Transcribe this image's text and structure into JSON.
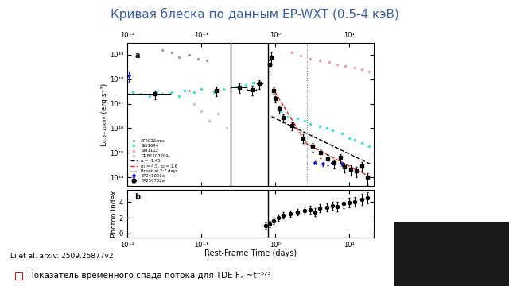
{
  "slide": {
    "title": "Кривая блеска по данным EP-WXT (0.5-4 кэВ)",
    "citation": "Li et al. arxiv: 2509.25877v2",
    "note": "Показатель временного спада потока для TDE Fₓ ~t⁻⁵ᐟ³"
  },
  "chart_data": [
    {
      "type": "scatter",
      "title": "a",
      "log": true,
      "legend": "lower left",
      "y_label": "L₀.₃₋₁₀ₖₑᵥ (erg s⁻¹)",
      "xlim": [
        0.01,
        22
      ],
      "xticks": [
        {
          "value": 0.01,
          "label": "10⁻²"
        },
        {
          "value": 0.1,
          "label": "10⁻¹"
        },
        {
          "value": 1,
          "label": "10⁰"
        },
        {
          "value": 10,
          "label": "10¹"
        }
      ],
      "ylim": [
        4.5e+43,
        3e+49
      ],
      "yticks": [
        {
          "value": 1e+44,
          "label": "10⁴⁴"
        },
        {
          "value": 1e+45,
          "label": "10⁴⁵"
        },
        {
          "value": 1e+46,
          "label": "10⁴⁶"
        },
        {
          "value": 1e+47,
          "label": "10⁴⁷"
        },
        {
          "value": 1e+48,
          "label": "10⁴⁸"
        },
        {
          "value": 1e+49,
          "label": "10⁴⁹"
        }
      ],
      "vlines": [
        0.25,
        0.8
      ],
      "series": [
        {
          "name": "AT2022cmc",
          "color": "#a0a0a0",
          "marker": "dot",
          "line_style": "none",
          "x": [
            0.03,
            0.04,
            0.05,
            0.07,
            0.09,
            0.12
          ],
          "values": [
            1.5e+49,
            1.2e+49,
            8e+48,
            1e+49,
            7e+48,
            6e+48
          ]
        },
        {
          "name": "SW1644",
          "color": "#40e0d0",
          "marker": "dot",
          "line_style": "none",
          "x": [
            0.012,
            0.015,
            0.02,
            0.025,
            0.03,
            0.04,
            0.05,
            0.06,
            0.08,
            0.1,
            0.15,
            0.2,
            0.3,
            0.4,
            0.5,
            1.2,
            1.5,
            2,
            2.5,
            3,
            4,
            5,
            6,
            8,
            10,
            12,
            15,
            19
          ],
          "values": [
            3e+47,
            2.5e+47,
            2e+47,
            3e+47,
            2.5e+47,
            3e+47,
            2e+47,
            3.5e+47,
            3e+47,
            4e+47,
            3e+47,
            4e+47,
            5e+47,
            6e+47,
            7e+47,
            5e+46,
            3e+46,
            2.5e+46,
            2e+46,
            1.5e+46,
            1.2e+46,
            1e+46,
            8e+45,
            6e+45,
            4e+45,
            3.5e+45,
            2.5e+45,
            1.8e+45
          ]
        },
        {
          "name": "SW1112",
          "color": "#e8a0b0",
          "marker": "dot",
          "line_style": "none",
          "x": [
            1.7,
            2.2,
            3,
            4,
            5.5,
            7,
            9,
            12,
            15,
            19
          ],
          "values": [
            1.2e+49,
            9e+48,
            7e+48,
            6e+48,
            5e+48,
            4e+48,
            3.5e+48,
            3e+48,
            2.5e+48,
            2e+48
          ]
        },
        {
          "name": "GRB110328A",
          "color": "#c8c8c8",
          "marker": "dot",
          "line_style": "none",
          "x": [
            0.08,
            0.1,
            0.13,
            0.17,
            0.22
          ],
          "values": [
            1e+47,
            5e+46,
            2e+46,
            4e+46,
            1e+46
          ]
        },
        {
          "name": "α = -1.45",
          "type": "line",
          "color": "#000000",
          "marker": "none",
          "line_style": "dashed",
          "x": [
            0.9,
            20
          ],
          "values": [
            3e+46,
            3.4e+44
          ]
        },
        {
          "name": "α₁ = 4.5, α₂ = 1.6",
          "type": "line",
          "color": "#d02020",
          "marker": "none",
          "line_style": "dashed",
          "x": [
            1.0,
            2.7,
            20
          ],
          "values": [
            3e+47,
            2.3e+45,
            1e+44
          ]
        },
        {
          "name": "Break at 2.7 days",
          "type": "vline",
          "color": "#808080",
          "line_style": "dotted",
          "x": [
            2.7
          ]
        },
        {
          "name": "EP241021a",
          "color": "#2020c0",
          "marker": "star",
          "line_style": "none",
          "x": [
            0.0105,
            3.5,
            4.5,
            6,
            8
          ],
          "values": [
            1.4e+48,
            4e+44,
            3.5e+44,
            4e+44,
            3.5e+44
          ],
          "yerr": [
            6e+47,
            5e+43,
            5e+43,
            5e+43,
            5e+43
          ]
        },
        {
          "name": "EP250702a",
          "color": "#000000",
          "marker": "square",
          "line_style": "none",
          "x": [
            0.024,
            0.16,
            0.33,
            0.49,
            0.62,
            0.85,
            0.88,
            0.95,
            1.0,
            1.13,
            1.3,
            1.7,
            2.4,
            3.2,
            4.1,
            5.2,
            6.3,
            7.6,
            8.6,
            10.5,
            12.5,
            14.9,
            18
          ],
          "values": [
            2.5e+47,
            3.5e+47,
            4.7e+47,
            3.7e+47,
            6.5e+47,
            4e+48,
            8e+48,
            3.5e+47,
            1.6e+47,
            6e+46,
            2.8e+46,
            1.3e+46,
            4e+45,
            1.8e+45,
            1e+45,
            5.6e+44,
            3.8e+44,
            6.4e+44,
            2.6e+44,
            2.2e+44,
            1.8e+44,
            3e+44,
            1e+44
          ],
          "yerr": [
            1e+47,
            1.5e+47,
            2e+47,
            1.5e+47,
            2.5e+47,
            2e+48,
            4e+48,
            1e+47,
            5e+46,
            2e+46,
            1e+46,
            5e+45,
            1.5e+45,
            7e+44,
            4e+44,
            2.5e+44,
            1.5e+44,
            2.5e+44,
            1e+44,
            1e+44,
            8e+43,
            1.2e+44,
            5e+43
          ],
          "xerr": [
            0.014,
            0.09,
            0.08,
            0.07,
            0.05,
            null,
            null,
            null,
            null,
            null,
            null,
            null,
            null,
            null,
            null,
            null,
            null,
            null,
            null,
            null,
            null,
            null,
            null
          ]
        }
      ]
    },
    {
      "type": "scatter",
      "title": "b",
      "log": "x",
      "x_label": "Rest-Frame Time (days)",
      "y_label": "Photon index",
      "xlim": [
        0.01,
        22
      ],
      "xticks": [
        {
          "value": 0.01,
          "label": "10⁻²"
        },
        {
          "value": 0.1,
          "label": "10⁻¹"
        },
        {
          "value": 1,
          "label": "10⁰"
        },
        {
          "value": 10,
          "label": "10¹"
        }
      ],
      "ylim": [
        -0.5,
        5.5
      ],
      "yticks": [
        0,
        2,
        4
      ],
      "vlines": [
        0.8
      ],
      "series": [
        {
          "color": "#000000",
          "marker": "circle",
          "line_style": "none",
          "x": [
            0.75,
            0.85,
            0.95,
            1.1,
            1.3,
            1.6,
            2,
            2.5,
            3,
            3.5,
            4,
            5,
            6,
            7,
            8.5,
            10,
            12,
            15,
            18
          ],
          "values": [
            1.0,
            1.2,
            1.6,
            2.0,
            2.3,
            2.5,
            2.7,
            2.9,
            3.0,
            2.7,
            3.2,
            3.3,
            3.5,
            3.4,
            3.8,
            3.9,
            4.0,
            4.3,
            4.5
          ],
          "yerr": [
            0.4,
            0.4,
            0.4,
            0.4,
            0.4,
            0.4,
            0.4,
            0.5,
            0.5,
            0.5,
            0.5,
            0.5,
            0.5,
            0.6,
            0.6,
            0.6,
            0.6,
            0.7,
            0.7
          ]
        }
      ]
    }
  ]
}
